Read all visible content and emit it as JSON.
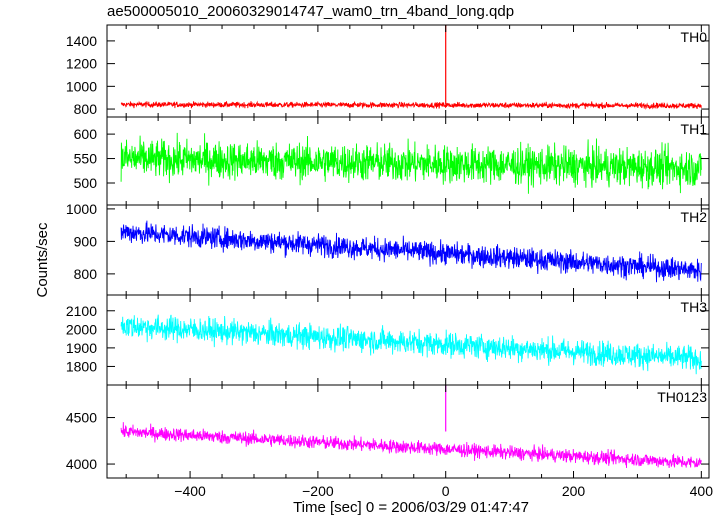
{
  "title": "ae500005010_20060329014747_wam0_trn_4band_long.qdp",
  "chart_data": {
    "type": "line",
    "title": "ae500005010_20060329014747_wam0_trn_4band_long.qdp",
    "xlabel": "Time [sec] 0 = 2006/03/29 01:47:47",
    "ylabel": "Counts/sec",
    "xlim": [
      -530,
      412
    ],
    "x_range": [
      -508,
      400
    ],
    "x_ticks": [
      -400,
      -200,
      0,
      200,
      400
    ],
    "x_tick_labels": [
      "−400",
      "−200",
      "0",
      "200",
      "400"
    ],
    "grid": false,
    "legend": "none",
    "panels": [
      {
        "name": "TH0",
        "color": "#ff0000",
        "ylim": [
          730,
          1540
        ],
        "ticks": [
          800,
          1000,
          1200,
          1400
        ],
        "tick_labels": [
          "800",
          "1000",
          "1200",
          "1400"
        ],
        "start": 840,
        "end": 830,
        "noise": 20,
        "spike": {
          "x": 0,
          "value": 1540
        }
      },
      {
        "name": "TH1",
        "color": "#00ff00",
        "ylim": [
          455,
          635
        ],
        "ticks": [
          500,
          550,
          600
        ],
        "tick_labels": [
          "500",
          "550",
          "600"
        ],
        "start": 550,
        "end": 530,
        "noise": 32,
        "spike": null
      },
      {
        "name": "TH2",
        "color": "#0000ff",
        "ylim": [
          735,
          1012
        ],
        "ticks": [
          800,
          900,
          1000
        ],
        "tick_labels": [
          "800",
          "900",
          "1000"
        ],
        "start": 930,
        "end": 810,
        "noise": 28,
        "spike": null
      },
      {
        "name": "TH3",
        "color": "#00ffff",
        "ylim": [
          1700,
          2185
        ],
        "ticks": [
          1800,
          1900,
          2000,
          2100
        ],
        "tick_labels": [
          "1800",
          "1900",
          "2000",
          "2100"
        ],
        "start": 2020,
        "end": 1840,
        "noise": 55,
        "spike": null
      },
      {
        "name": "TH0123",
        "color": "#ff00ff",
        "ylim": [
          3850,
          4850
        ],
        "ticks": [
          4000,
          4500
        ],
        "tick_labels": [
          "4000",
          "4500"
        ],
        "start": 4350,
        "end": 4010,
        "noise": 60,
        "spike": {
          "x": 0,
          "value": 4850
        }
      }
    ]
  }
}
